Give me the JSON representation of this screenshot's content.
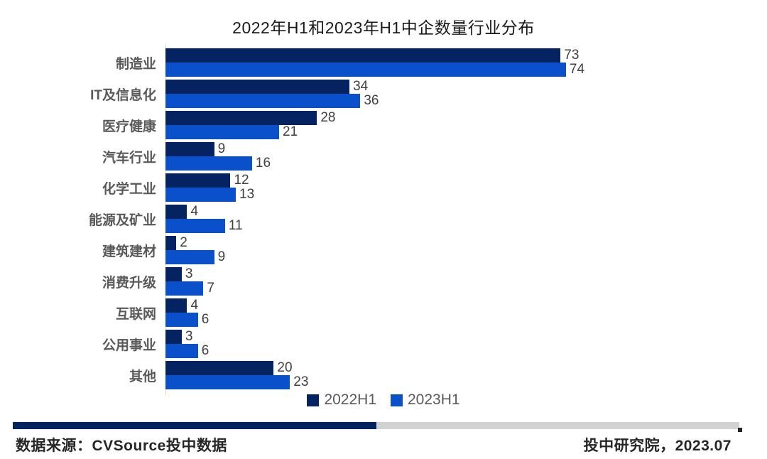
{
  "chart_data": {
    "type": "bar",
    "orientation": "horizontal",
    "title": "2022年H1和2023年H1中企数量行业分布",
    "categories": [
      "制造业",
      "IT及信息化",
      "医疗健康",
      "汽车行业",
      "化学工业",
      "能源及矿业",
      "建筑建材",
      "消费升级",
      "互联网",
      "公用事业",
      "其他"
    ],
    "series": [
      {
        "name": "2022H1",
        "color": "#052361",
        "values": [
          73,
          34,
          28,
          9,
          12,
          4,
          2,
          3,
          4,
          3,
          20
        ]
      },
      {
        "name": "2023H1",
        "color": "#0B50CB",
        "values": [
          74,
          36,
          21,
          16,
          13,
          11,
          9,
          7,
          6,
          6,
          23
        ]
      }
    ],
    "xlim": [
      0,
      80
    ],
    "grid": false,
    "legend_position": "bottom",
    "value_labels": true
  },
  "colors": {
    "bar_2022h1": "#052361",
    "bar_2023h1": "#0B50CB",
    "value_label": "#404040",
    "category_label": "#595959",
    "axis_line": "#d9d9d9",
    "divider_navy": "#052361",
    "divider_gray": "#d2d2d2",
    "background": "#ffffff"
  },
  "footer": {
    "source": "数据来源：CVSource投中数据",
    "credit": "投中研究院，2023.07"
  }
}
